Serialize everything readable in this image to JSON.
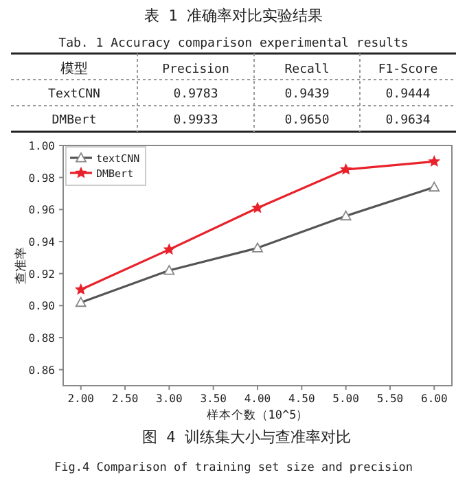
{
  "chart_data": [
    {
      "type": "heatmap",
      "title": "表 1 准确率对比实验结果",
      "subtitle": "Tab. 1 Accuracy comparison experimental results",
      "ylabel": "模型",
      "categories": [
        "Precision",
        "Recall",
        "F1-Score"
      ],
      "y_categories": [
        "TextCNN",
        "DMBert"
      ],
      "cells": [
        [
          0.9783,
          0.9439,
          0.9444
        ],
        [
          0.9933,
          0.965,
          0.9634
        ]
      ],
      "cell_labels": [
        [
          "0.9783",
          "0.9439",
          "0.9444"
        ],
        [
          "0.9933",
          "0.9650",
          "0.9634"
        ]
      ],
      "data_labels": true
    },
    {
      "type": "line",
      "title": "图 4 训练集大小与查准率对比",
      "xlabel": "样本个数（10^5）",
      "ylabel": "查准率",
      "annotations": [
        "Fig.4 Comparison of training set size and precision"
      ],
      "x": [
        2,
        3,
        4,
        5,
        6
      ],
      "series": [
        {
          "name": "textCNN",
          "color": "#555555",
          "marker": "triangle",
          "values": [
            0.902,
            0.922,
            0.936,
            0.956,
            0.974
          ]
        },
        {
          "name": "DMBert",
          "color": "#e8212a",
          "marker": "star",
          "values": [
            0.91,
            0.935,
            0.961,
            0.985,
            0.99
          ]
        }
      ],
      "xlim": [
        1.8,
        6.2
      ],
      "ylim": [
        0.85,
        1.0
      ],
      "xticks": [
        {
          "value": 2,
          "label": "2.00"
        },
        {
          "value": 2.5,
          "label": "2.50"
        },
        {
          "value": 3,
          "label": "3.00"
        },
        {
          "value": 3.5,
          "label": "3.50"
        },
        {
          "value": 4,
          "label": "4.00"
        },
        {
          "value": 4.5,
          "label": "4.50"
        },
        {
          "value": 5,
          "label": "5.00"
        },
        {
          "value": 5.5,
          "label": "5.50"
        },
        {
          "value": 6,
          "label": "6.00"
        }
      ],
      "yticks": [
        0.86,
        0.88,
        {
          "value": 0.9,
          "label": "0.90"
        },
        0.92,
        0.94,
        0.96,
        0.98,
        {
          "value": 1,
          "label": "1.00"
        }
      ],
      "legend": "top left"
    }
  ]
}
